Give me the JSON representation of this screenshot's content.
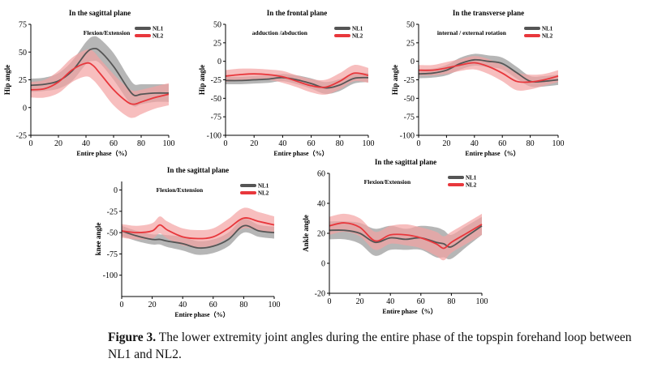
{
  "colors": {
    "nl1": "#555555",
    "nl1_band": "#a9a9a9",
    "nl2": "#e8373c",
    "nl2_band": "#f4a3a3"
  },
  "caption": {
    "label": "Figure 3.",
    "text": " The lower extremity joint angles during the entire phase of the topspin forehand loop between NL1 and NL2."
  },
  "chart_data": [
    {
      "type": "line",
      "title": "In the sagittal plane",
      "annotation": "Flexion/Extension",
      "xlabel": "Entire phase（%）",
      "ylabel": "Hip angle",
      "xlim": [
        0,
        100
      ],
      "ylim": [
        -25,
        75
      ],
      "xticks": [
        0,
        20,
        40,
        60,
        80,
        100
      ],
      "yticks": [
        -25,
        0,
        25,
        50,
        75
      ],
      "legend": "top-right",
      "x": [
        0,
        10,
        20,
        30,
        40,
        45,
        50,
        60,
        70,
        75,
        80,
        90,
        100
      ],
      "series": [
        {
          "name": "NL1",
          "values": [
            20,
            21,
            24,
            33,
            49,
            53,
            51,
            37,
            18,
            11,
            12,
            13,
            13
          ],
          "band": [
            6,
            6,
            7,
            9,
            10,
            11,
            11,
            12,
            11,
            10,
            9,
            8,
            8
          ]
        },
        {
          "name": "NL2",
          "values": [
            16,
            17,
            23,
            34,
            40,
            38,
            31,
            16,
            5,
            3,
            5,
            9,
            12
          ],
          "band": [
            7,
            8,
            10,
            11,
            12,
            13,
            13,
            14,
            13,
            12,
            11,
            10,
            10
          ]
        }
      ]
    },
    {
      "type": "line",
      "title": "In the frontal plane",
      "annotation": "adduction /abduction",
      "xlabel": "Entire phase（%）",
      "ylabel": "Hip angle",
      "xlim": [
        0,
        100
      ],
      "ylim": [
        -100,
        50
      ],
      "xticks": [
        0,
        20,
        40,
        60,
        80,
        100
      ],
      "yticks": [
        -100,
        -75,
        -50,
        -25,
        0,
        25,
        50
      ],
      "legend": "top-right",
      "x": [
        0,
        10,
        20,
        30,
        40,
        50,
        60,
        70,
        80,
        90,
        100
      ],
      "series": [
        {
          "name": "NL1",
          "values": [
            -26,
            -26,
            -25,
            -24,
            -22,
            -25,
            -30,
            -36,
            -32,
            -23,
            -22
          ],
          "band": [
            5,
            5,
            5,
            5,
            5,
            6,
            7,
            8,
            8,
            7,
            6
          ]
        },
        {
          "name": "NL2",
          "values": [
            -20,
            -18,
            -17,
            -18,
            -21,
            -27,
            -33,
            -35,
            -27,
            -16,
            -19
          ],
          "band": [
            8,
            8,
            7,
            7,
            8,
            8,
            9,
            10,
            11,
            11,
            10
          ]
        }
      ]
    },
    {
      "type": "line",
      "title": "In the transverse plane",
      "annotation": "internal / external rotation",
      "xlabel": "Entire phase（%）",
      "ylabel": "Hip angle",
      "xlim": [
        0,
        100
      ],
      "ylim": [
        -100,
        50
      ],
      "xticks": [
        0,
        20,
        40,
        60,
        80,
        100
      ],
      "yticks": [
        -100,
        -75,
        -50,
        -25,
        0,
        25,
        50
      ],
      "legend": "top-right",
      "x": [
        0,
        10,
        20,
        30,
        40,
        50,
        60,
        70,
        80,
        90,
        100
      ],
      "series": [
        {
          "name": "NL1",
          "values": [
            -17,
            -16,
            -12,
            -3,
            2,
            0,
            -3,
            -15,
            -27,
            -27,
            -25
          ],
          "band": [
            6,
            6,
            7,
            8,
            8,
            8,
            8,
            8,
            7,
            7,
            7
          ]
        },
        {
          "name": "NL2",
          "values": [
            -12,
            -12,
            -9,
            -5,
            -2,
            -7,
            -16,
            -27,
            -28,
            -25,
            -20
          ],
          "band": [
            7,
            7,
            8,
            8,
            9,
            10,
            11,
            12,
            10,
            8,
            8
          ]
        }
      ]
    },
    {
      "type": "line",
      "title": "In the sagittal plane",
      "annotation": "Flexion/Extension",
      "xlabel": "Entire phase（%）",
      "ylabel": "knee angle",
      "xlim": [
        0,
        100
      ],
      "ylim": [
        -125,
        10
      ],
      "xticks": [
        0,
        20,
        40,
        60,
        80,
        100
      ],
      "yticks": [
        -100,
        -75,
        -50,
        -25,
        0
      ],
      "legend": "top-right",
      "x": [
        0,
        10,
        20,
        25,
        30,
        40,
        50,
        60,
        70,
        80,
        90,
        100
      ],
      "series": [
        {
          "name": "NL1",
          "values": [
            -48,
            -54,
            -58,
            -58,
            -60,
            -63,
            -68,
            -66,
            -58,
            -42,
            -48,
            -50
          ],
          "band": [
            6,
            6,
            6,
            6,
            7,
            8,
            8,
            8,
            8,
            8,
            7,
            7
          ]
        },
        {
          "name": "NL2",
          "values": [
            -48,
            -50,
            -48,
            -41,
            -47,
            -55,
            -57,
            -55,
            -45,
            -33,
            -37,
            -41
          ],
          "band": [
            8,
            8,
            9,
            10,
            10,
            10,
            10,
            10,
            11,
            12,
            11,
            10
          ]
        }
      ]
    },
    {
      "type": "line",
      "title": "In the sagittal plane",
      "annotation": "Flexion/Extension",
      "xlabel": "Entire phase（%）",
      "ylabel": "Ankle angle",
      "xlim": [
        0,
        100
      ],
      "ylim": [
        -20,
        60
      ],
      "xticks": [
        0,
        20,
        40,
        60,
        80,
        100
      ],
      "yticks": [
        -20,
        0,
        20,
        40,
        60
      ],
      "legend": "top-right",
      "x": [
        0,
        10,
        20,
        30,
        40,
        50,
        60,
        70,
        75,
        80,
        90,
        100
      ],
      "series": [
        {
          "name": "NL1",
          "values": [
            22,
            22,
            20,
            14,
            17,
            16,
            17,
            14,
            13,
            11,
            18,
            25
          ],
          "band": [
            6,
            6,
            7,
            9,
            8,
            7,
            8,
            10,
            9,
            8,
            7,
            6
          ]
        },
        {
          "name": "NL2",
          "values": [
            25,
            27,
            24,
            15,
            19,
            19,
            17,
            13,
            10,
            14,
            20,
            26
          ],
          "band": [
            6,
            6,
            6,
            6,
            6,
            7,
            7,
            8,
            8,
            7,
            7,
            7
          ]
        }
      ]
    }
  ]
}
